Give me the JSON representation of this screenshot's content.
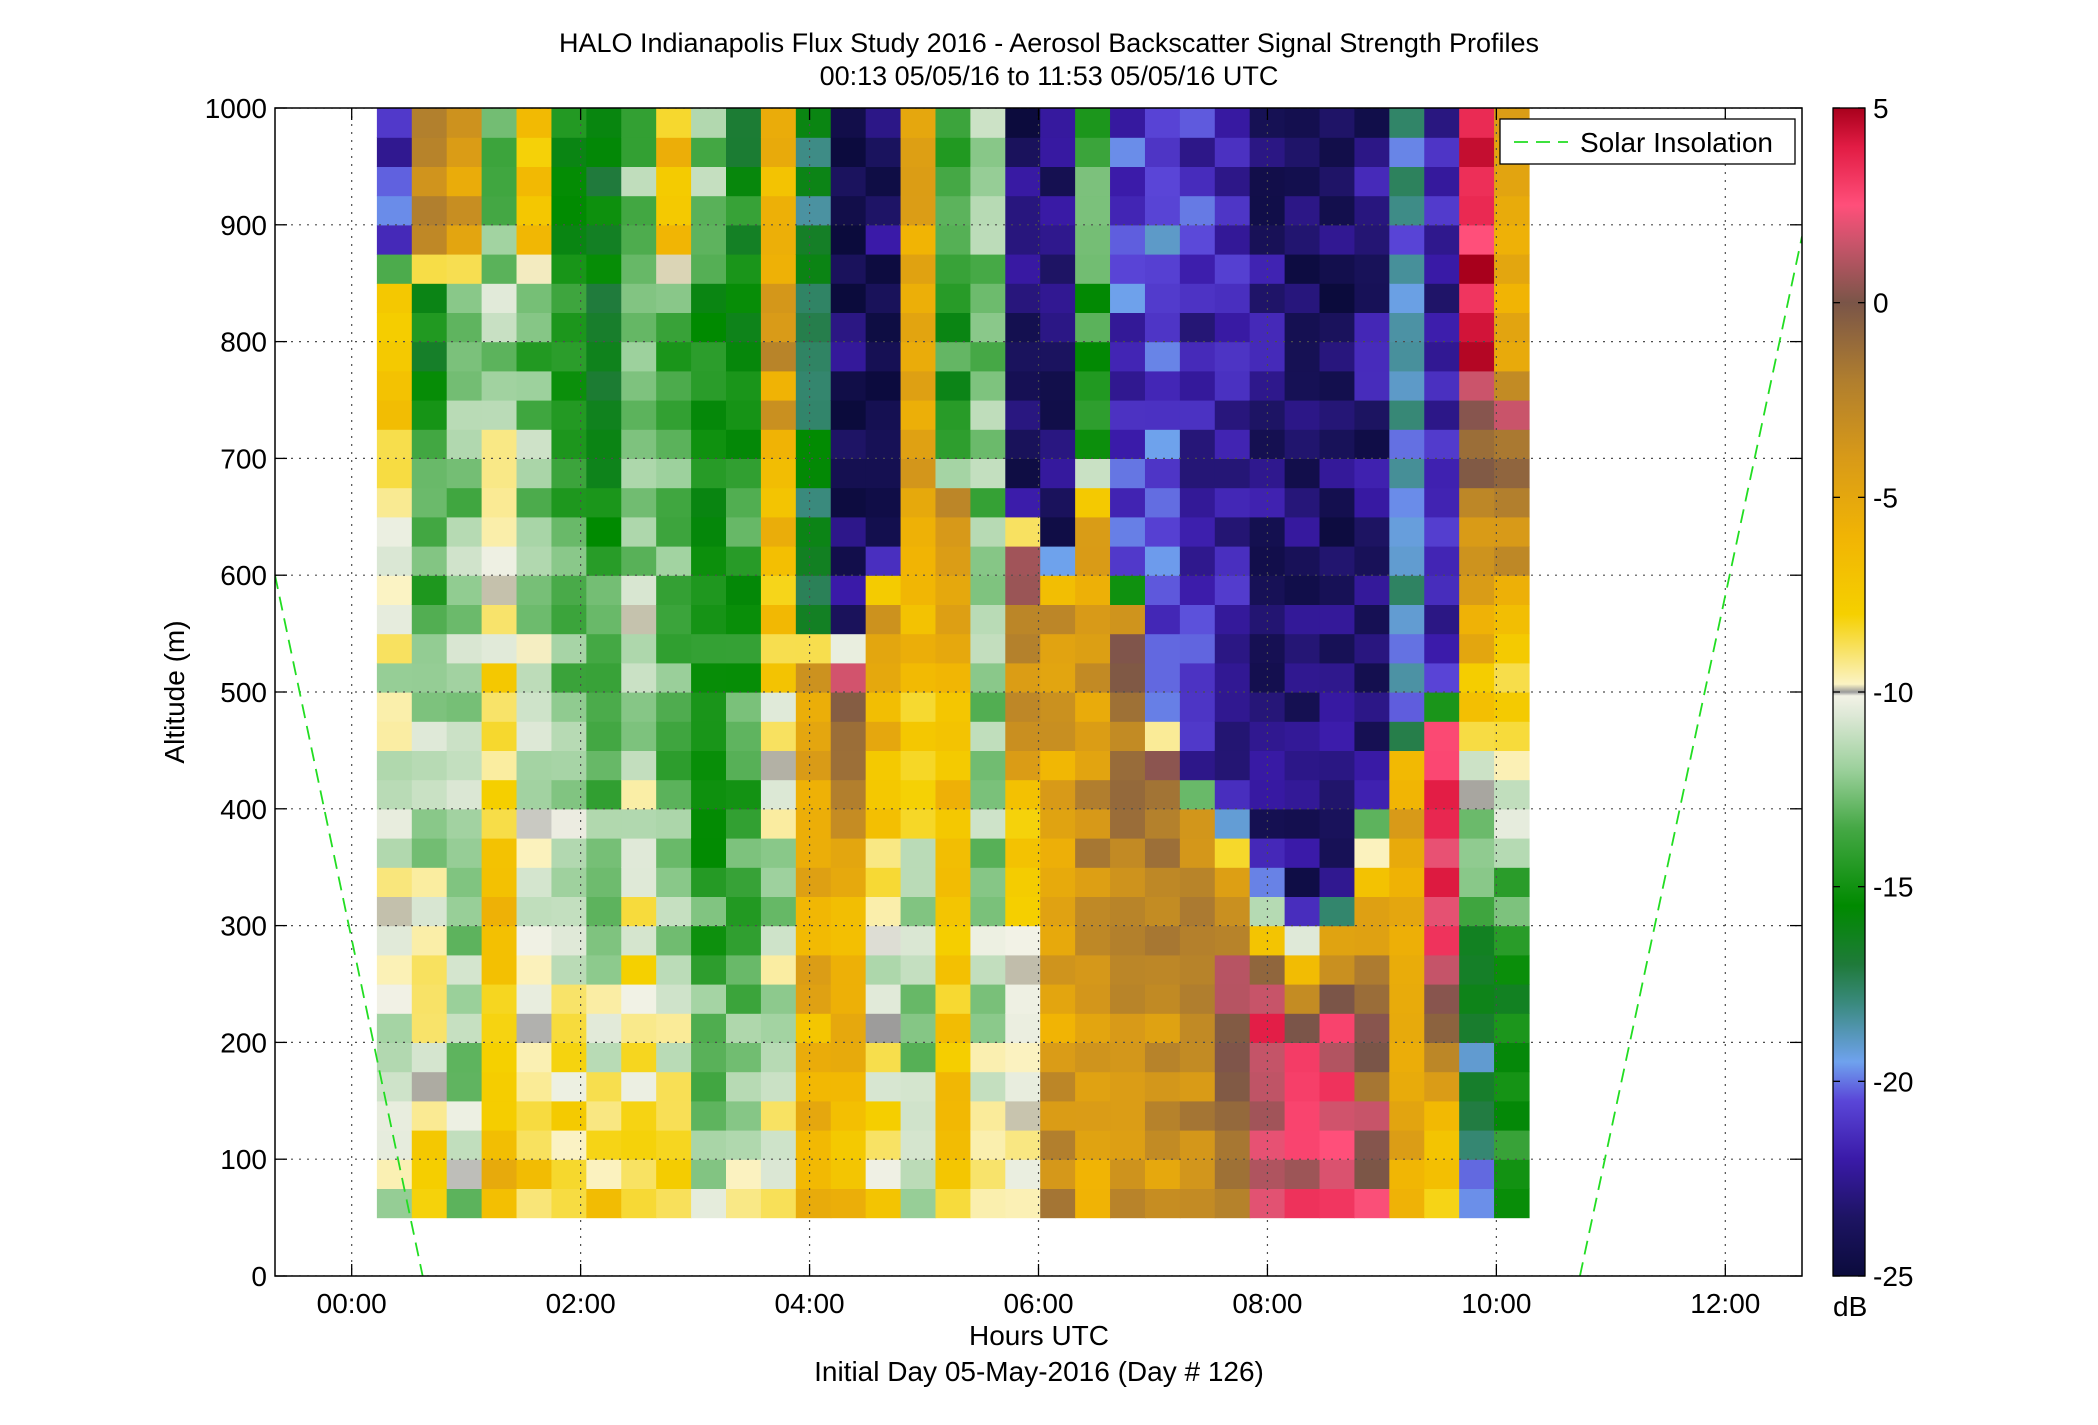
{
  "chart_data": {
    "type": "heatmap",
    "title": "HALO Indianapolis Flux Study 2016 - Aerosol Backscatter Signal Strength Profiles",
    "subtitle": "00:13 05/05/16 to 11:53 05/05/16  UTC",
    "xlabel": "Hours UTC",
    "xlabel2": "Initial Day 05-May-2016 (Day # 126)",
    "ylabel": "Altitude (m)",
    "x_tick_labels": [
      "00:00",
      "02:00",
      "04:00",
      "06:00",
      "08:00",
      "10:00",
      "12:00"
    ],
    "x_ticks": [
      0,
      2,
      4,
      6,
      8,
      10,
      12
    ],
    "xlim": [
      -0.67,
      12.67
    ],
    "y_tick_labels": [
      "0",
      "100",
      "200",
      "300",
      "400",
      "500",
      "600",
      "700",
      "800",
      "900",
      "1000"
    ],
    "y_ticks": [
      0,
      100,
      200,
      300,
      400,
      500,
      600,
      700,
      800,
      900,
      1000
    ],
    "ylim": [
      0,
      1000
    ],
    "grid": true,
    "colorbar": {
      "label": "dB",
      "ticks": [
        5,
        0,
        -5,
        -10,
        -15,
        -20,
        -25
      ],
      "tick_labels": [
        "5",
        "0",
        "-5",
        "-10",
        "-15",
        "-20",
        "-25"
      ],
      "range": [
        -25,
        5
      ]
    },
    "colormap": [
      [
        "-25",
        "#0b0b3c"
      ],
      [
        "-23.5",
        "#1d1463"
      ],
      [
        "-22",
        "#3a1aa8"
      ],
      [
        "-20.5",
        "#5a46d8"
      ],
      [
        "-19.5",
        "#6fa2ee"
      ],
      [
        "-18",
        "#3a8a7e"
      ],
      [
        "-17",
        "#1f7a3a"
      ],
      [
        "-15.5",
        "#008a00"
      ],
      [
        "-13.5",
        "#45a845"
      ],
      [
        "-12",
        "#9bd09b"
      ],
      [
        "-10.6",
        "#dde8d6"
      ],
      [
        "-10.1",
        "#f2f2e6"
      ],
      [
        "-10",
        "#9a9a9a"
      ],
      [
        "-9.8",
        "#fbf3c4"
      ],
      [
        "-8",
        "#f5d000"
      ],
      [
        "-6",
        "#f1b404"
      ],
      [
        "-4",
        "#d89a18"
      ],
      [
        "-2",
        "#b07e2e"
      ],
      [
        "0",
        "#7a5548"
      ],
      [
        "1.5",
        "#c8546a"
      ],
      [
        "2.5",
        "#ff4f7a"
      ],
      [
        "4",
        "#e21c44"
      ],
      [
        "5",
        "#a8001c"
      ]
    ],
    "legend": {
      "entries": [
        "Solar Insolation"
      ],
      "placement": "top-right"
    },
    "solar_insolation": {
      "style": "green dashed",
      "segments": [
        [
          [
            -0.67,
            600
          ],
          [
            0.62,
            0
          ]
        ],
        [
          [
            10.73,
            0
          ],
          [
            12.67,
            890
          ]
        ]
      ]
    },
    "grid_spec": {
      "x_start": 0.22,
      "x_step": 0.305,
      "y_start": 50,
      "y_step": 25,
      "columns": 33,
      "rows": 38
    },
    "column_profiles": [
      {
        "a": -10.5,
        "b": -10.5,
        "c": -6.5,
        "d": -21,
        "h1": 520,
        "w1": 10,
        "hb": 880
      },
      {
        "a": -7.5,
        "b": -13.5,
        "c": -16.5,
        "d": -3.5,
        "h1": 600,
        "w1": 10,
        "hb": 880
      },
      {
        "a": -11.5,
        "b": -12,
        "c": -12.5,
        "d": -4.5,
        "h1": 600,
        "w1": 20,
        "hb": 880
      },
      {
        "a": -6,
        "b": -7.5,
        "c": -12.5,
        "d": -12.5,
        "h1": 400,
        "w1": 20,
        "hb": 880
      },
      {
        "a": -7,
        "b": -9.8,
        "c": -13.5,
        "d": -7.5,
        "h1": 290,
        "w1": 20,
        "hb": 880
      },
      {
        "a": -7,
        "b": -10.5,
        "c": -15,
        "d": -15.5,
        "h1": 250,
        "w1": 20,
        "hb": 880
      },
      {
        "a": -7,
        "b": -12,
        "c": -16.5,
        "d": -16.5,
        "h1": 300,
        "w1": 20,
        "hb": 880
      },
      {
        "a": -7.5,
        "b": -11,
        "c": -12.5,
        "d": -12.5,
        "h1": 450,
        "w1": 20,
        "hb": 880
      },
      {
        "a": -7.5,
        "b": -12.5,
        "c": -13.5,
        "d": -7,
        "h1": 350,
        "w1": 20,
        "hb": 880
      },
      {
        "a": -9.8,
        "b": -13.5,
        "c": -15.5,
        "d": -12.5,
        "h1": 250,
        "w1": 20,
        "hb": 880
      },
      {
        "a": -8,
        "b": -13.5,
        "c": -15,
        "d": -15.5,
        "h1": 250,
        "w1": 20,
        "hb": 880
      },
      {
        "a": -9,
        "b": -11.5,
        "c": -2.5,
        "d": -6.5,
        "h1": 330,
        "w1": 20,
        "hb": 880
      },
      {
        "a": -7,
        "b": -5,
        "c": -4.5,
        "d": -17,
        "h1": 360,
        "w1": 20,
        "hb": 560
      },
      {
        "a": -7,
        "b": -6.5,
        "c": 2.5,
        "d": -23.5,
        "h1": 300,
        "w1": 20,
        "hb": 560
      },
      {
        "a": -8,
        "b": -10.5,
        "c": -3.5,
        "d": -23.5,
        "h1": 250,
        "w1": 20,
        "hb": 620
      },
      {
        "a": -11,
        "b": -12.5,
        "c": -3,
        "d": -5,
        "h1": 250,
        "w1": 20,
        "hb": 720
      },
      {
        "a": -7,
        "b": -7.5,
        "c": -2,
        "d": -14.5,
        "h1": 400,
        "w1": 20,
        "hb": 700
      },
      {
        "a": -8,
        "b": -12.5,
        "c": -12.5,
        "d": -12.5,
        "h1": 350,
        "w1": 20,
        "hb": 720
      },
      {
        "a": -8.5,
        "b": -9.8,
        "c": 2,
        "d": -23.5,
        "h1": 300,
        "w1": 20,
        "hb": 660
      },
      {
        "a": -2.5,
        "b": -6,
        "c": -2,
        "d": -23.5,
        "h1": 350,
        "w1": 20,
        "hb": 620
      },
      {
        "a": -5,
        "b": -3,
        "c": -6,
        "d": -14,
        "h1": 350,
        "w1": 20,
        "hb": 700
      },
      {
        "a": -4,
        "b": -2.5,
        "c": -1,
        "d": -21,
        "h1": 280,
        "w1": 20,
        "hb": 600
      },
      {
        "a": -4,
        "b": -2.5,
        "c": 1.5,
        "d": -20,
        "h1": 320,
        "w1": 20,
        "hb": 480
      },
      {
        "a": -3.5,
        "b": -2,
        "c": -5.5,
        "d": -21.5,
        "h1": 250,
        "w1": 20,
        "hb": 430
      },
      {
        "a": -2,
        "b": 1.5,
        "c": -9.8,
        "d": -22,
        "h1": 240,
        "w1": 20,
        "hb": 400
      },
      {
        "a": 2,
        "b": 2.5,
        "c": -15.5,
        "d": -23,
        "h1": 230,
        "w1": 20,
        "hb": 350
      },
      {
        "a": 2.5,
        "b": 1.5,
        "c": -20,
        "d": -23.5,
        "h1": 220,
        "w1": 20,
        "hb": 330
      },
      {
        "a": 3,
        "b": 2.5,
        "c": -12.5,
        "d": -23.5,
        "h1": 230,
        "w1": 20,
        "hb": 330
      },
      {
        "a": 2,
        "b": -2,
        "c": -12,
        "d": -23,
        "h1": 260,
        "w1": 20,
        "hb": 420
      },
      {
        "a": -6,
        "b": -5.5,
        "c": -5,
        "d": -19,
        "h1": 300,
        "w1": 20,
        "hb": 470
      },
      {
        "a": -12.5,
        "b": 2.5,
        "c": 4,
        "d": -22,
        "h1": 300,
        "w1": 20,
        "hb": 500
      },
      {
        "a": -19.5,
        "b": -17,
        "c": 2.5,
        "d": 4,
        "h1": 250,
        "w1": 20,
        "hb": 780
      },
      {
        "a": -14.5,
        "b": -16,
        "c": 2,
        "d": -5,
        "h1": 250,
        "w1": 20,
        "hb": 780
      }
    ]
  },
  "colors": {
    "grid": "#4d4d4d",
    "solar_line": "#22dd22",
    "frame": "#000000"
  }
}
